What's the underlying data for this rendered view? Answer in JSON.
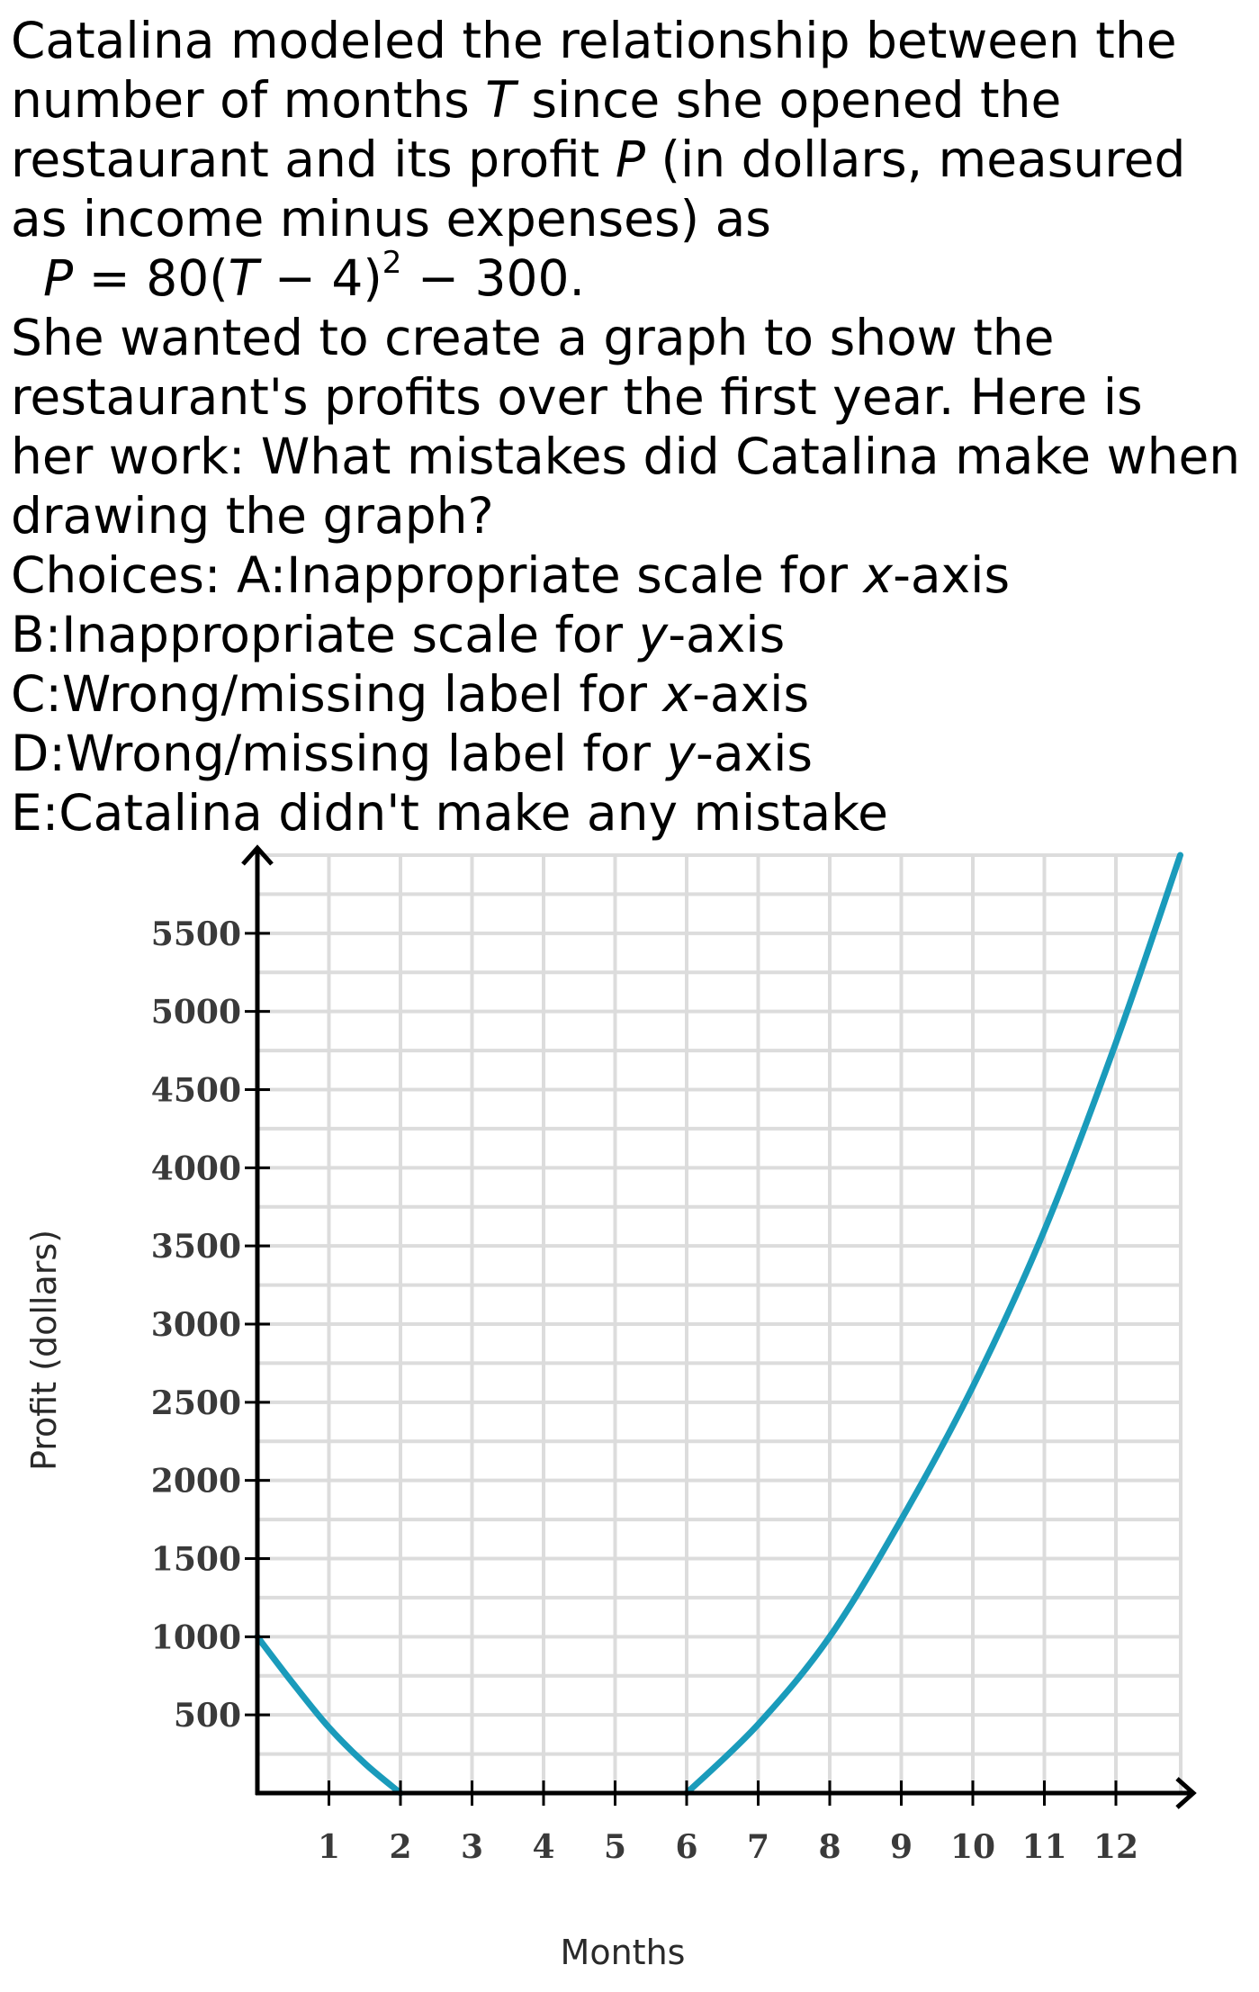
{
  "question": {
    "intro_lines": [
      "Catalina modeled the relationship between the",
      "number of months ",
      " since she opened the",
      "restaurant and its profit ",
      " (in dollars, measured",
      "as income minus expenses) as"
    ],
    "var_t": "T",
    "var_p": "P",
    "formula": {
      "lhs": "P",
      "mid": " = 80(",
      "t": "T",
      "inner": " − 4)",
      "exp": "2",
      "tail": " − 300."
    },
    "body_lines": [
      "She wanted to create a graph to show the",
      "restaurant's profits over the first year. Here is",
      "her work: What mistakes did Catalina make when",
      "drawing the graph?"
    ],
    "choices": [
      {
        "prefix": "Choices: A:Inappropriate scale for ",
        "var": "x",
        "suffix": "-axis"
      },
      {
        "prefix": "B:Inappropriate scale for ",
        "var": "y",
        "suffix": "-axis"
      },
      {
        "prefix": "C:Wrong/missing label for ",
        "var": "x",
        "suffix": "-axis"
      },
      {
        "prefix": "D:Wrong/missing label for ",
        "var": "y",
        "suffix": "-axis"
      },
      {
        "prefix": "E:Catalina didn't make any mistake",
        "var": "",
        "suffix": ""
      }
    ]
  },
  "chart_data": {
    "type": "line",
    "title": "",
    "xlabel": "Months",
    "ylabel": "Profit (dollars)",
    "xlim": [
      0,
      12.9
    ],
    "ylim": [
      0,
      6000
    ],
    "x_ticks": [
      1,
      2,
      3,
      4,
      5,
      6,
      7,
      8,
      9,
      10,
      11,
      12
    ],
    "y_ticks": [
      500,
      1000,
      1500,
      2000,
      2500,
      3000,
      3500,
      4000,
      4500,
      5000,
      5500
    ],
    "grid": true,
    "legend": "none",
    "series": [
      {
        "color": "#1a9bbb",
        "points": [
          {
            "x": 0,
            "y": 1000
          },
          {
            "x": 0.5,
            "y": 700
          },
          {
            "x": 1,
            "y": 420
          },
          {
            "x": 1.5,
            "y": 190
          },
          {
            "x": 2,
            "y": 0
          }
        ]
      },
      {
        "color": "#1a9bbb",
        "points": [
          {
            "x": 6,
            "y": 0
          },
          {
            "x": 7,
            "y": 440
          },
          {
            "x": 8,
            "y": 1000
          },
          {
            "x": 9,
            "y": 1750
          },
          {
            "x": 10,
            "y": 2600
          },
          {
            "x": 11,
            "y": 3600
          },
          {
            "x": 12,
            "y": 4800
          },
          {
            "x": 12.9,
            "y": 6000
          }
        ]
      }
    ],
    "colors": {
      "grid": "#dcdcdc",
      "axis": "#000000",
      "curve": "#1a9bbb"
    }
  }
}
